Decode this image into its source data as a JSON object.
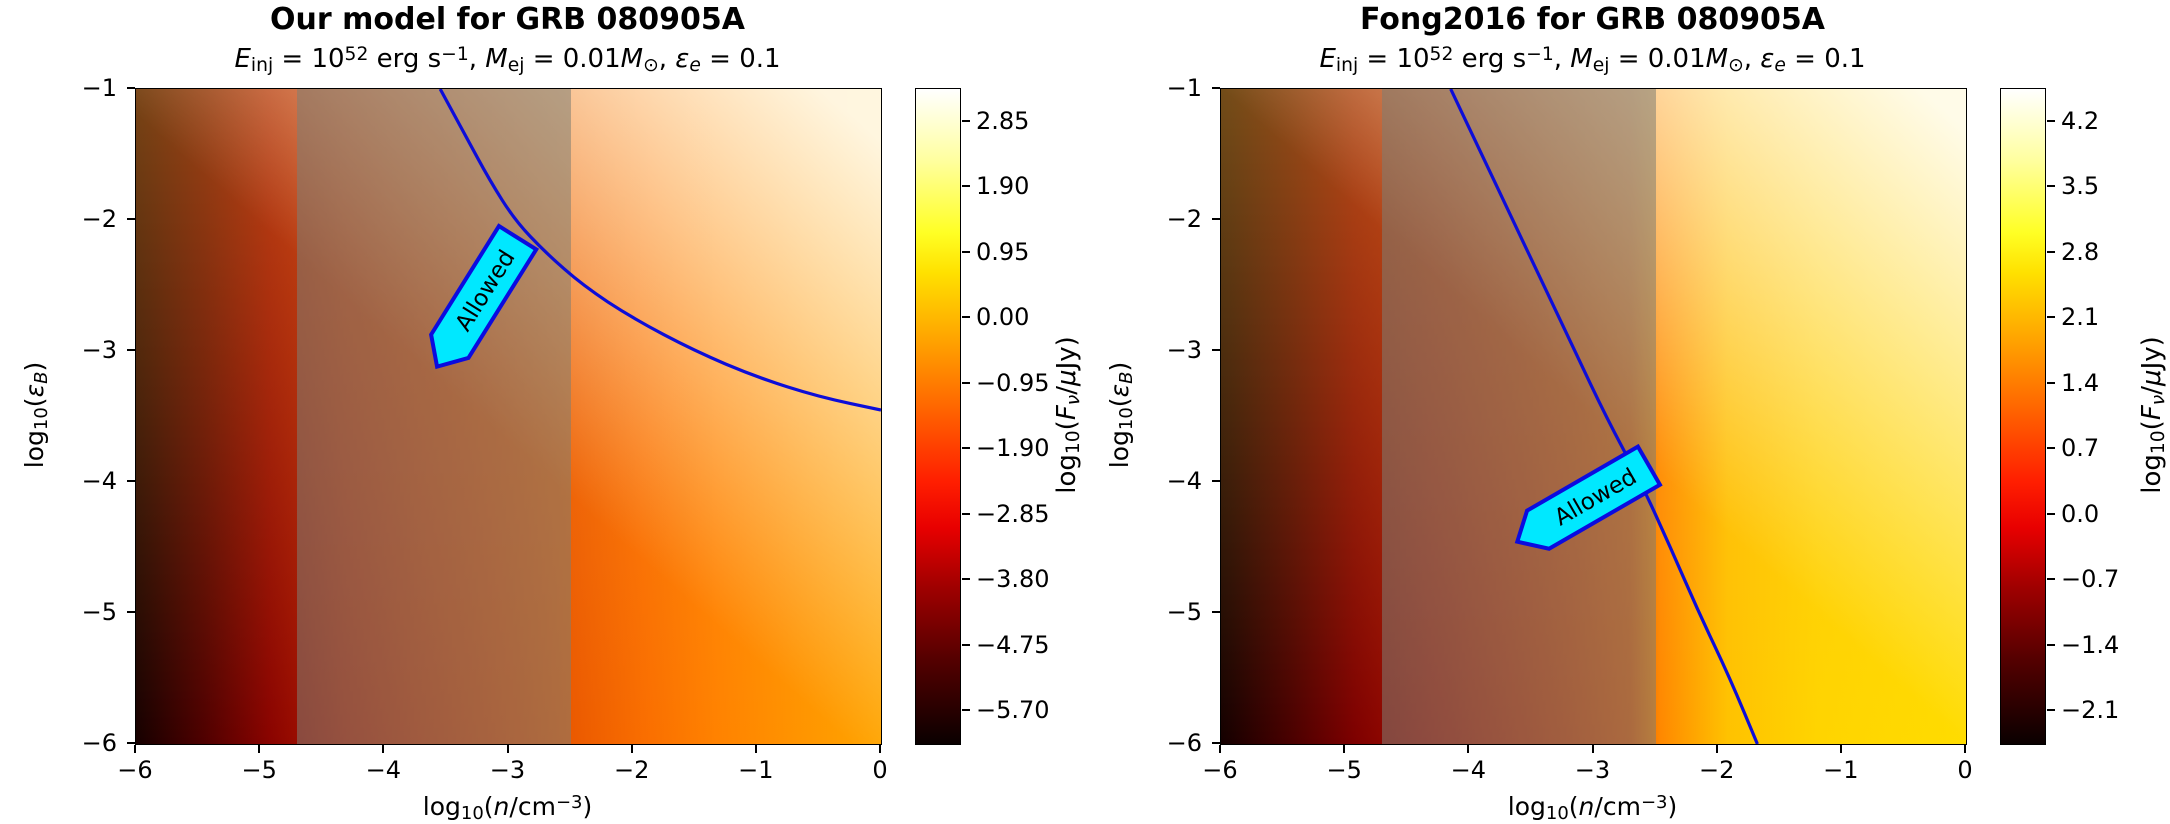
{
  "style_colors": {
    "curve": "#0d0dd8",
    "region_fill": "#00e8ff",
    "region_stroke": "#0b0bdf",
    "band": "rgba(125,125,115,0.55)",
    "axis": "#000000",
    "background": "#ffffff"
  },
  "chart_data": [
    {
      "type": "heatmap",
      "title": "Our model for GRB 080905A",
      "subtitle_parts": [
        {
          "t": "E",
          "c": "it"
        },
        {
          "t": "inj",
          "c": "sb"
        },
        {
          "t": " = 10"
        },
        {
          "t": "52",
          "c": "sp"
        },
        {
          "t": " erg s"
        },
        {
          "t": "−1",
          "c": "sp"
        },
        {
          "t": ", "
        },
        {
          "t": "M",
          "c": "it"
        },
        {
          "t": "ej",
          "c": "sb"
        },
        {
          "t": " = 0.01"
        },
        {
          "t": "M",
          "c": "it"
        },
        {
          "t": "⊙",
          "c": "sb"
        },
        {
          "t": ", "
        },
        {
          "t": "ε",
          "c": "it"
        },
        {
          "t": "e",
          "c": "sb it"
        },
        {
          "t": " = 0.1"
        }
      ],
      "xlabel_parts": [
        {
          "t": "log"
        },
        {
          "t": "10",
          "c": "sb"
        },
        {
          "t": "("
        },
        {
          "t": "n",
          "c": "it"
        },
        {
          "t": "/cm"
        },
        {
          "t": "−3",
          "c": "sp"
        },
        {
          "t": ")"
        }
      ],
      "ylabel_parts": [
        {
          "t": "log"
        },
        {
          "t": "10",
          "c": "sb"
        },
        {
          "t": "("
        },
        {
          "t": "ε",
          "c": "it"
        },
        {
          "t": "B",
          "c": "sb it"
        },
        {
          "t": ")"
        }
      ],
      "xlim": [
        -6,
        0
      ],
      "ylim": [
        -6,
        -1
      ],
      "x_ticks": [
        -6,
        -5,
        -4,
        -3,
        -2,
        -1,
        0
      ],
      "x_tick_labels": [
        "−6",
        "−5",
        "−4",
        "−3",
        "−2",
        "−1",
        "0"
      ],
      "y_ticks": [
        -1,
        -2,
        -3,
        -4,
        -5,
        -6
      ],
      "y_tick_labels": [
        "−1",
        "−2",
        "−3",
        "−4",
        "−5",
        "−6"
      ],
      "colormap": "hot",
      "colorbar_label_parts": [
        {
          "t": "log"
        },
        {
          "t": "10",
          "c": "sb"
        },
        {
          "t": "("
        },
        {
          "t": "F",
          "c": "it"
        },
        {
          "t": "ν",
          "c": "sb it"
        },
        {
          "t": "/"
        },
        {
          "t": "μ",
          "c": "it"
        },
        {
          "t": "Jy)"
        }
      ],
      "colorbar_tick_values": [
        2.85,
        1.9,
        0.95,
        0.0,
        -0.95,
        -1.9,
        -2.85,
        -3.8,
        -4.75,
        -5.7
      ],
      "colorbar_tick_labels": [
        "2.85",
        "1.90",
        "0.95",
        "0.00",
        "−0.95",
        "−1.90",
        "−2.85",
        "−3.80",
        "−4.75",
        "−5.70"
      ],
      "colorbar_range": [
        -6.175,
        3.325
      ],
      "shaded_band_x": [
        -4.7,
        -2.5
      ],
      "constraint_curve_points": [
        [
          -3.55,
          -1.0
        ],
        [
          -3.35,
          -1.35
        ],
        [
          -3.15,
          -1.7
        ],
        [
          -2.95,
          -2.0
        ],
        [
          -2.7,
          -2.25
        ],
        [
          -2.4,
          -2.5
        ],
        [
          -2.0,
          -2.75
        ],
        [
          -1.5,
          -3.0
        ],
        [
          -1.0,
          -3.2
        ],
        [
          -0.5,
          -3.35
        ],
        [
          0.0,
          -3.45
        ]
      ],
      "region_label": {
        "text": "Allowed",
        "center": [
          -3.2,
          -2.55
        ],
        "rotation_deg": -58
      }
    },
    {
      "type": "heatmap",
      "title": "Fong2016 for GRB 080905A",
      "subtitle_parts": [
        {
          "t": "E",
          "c": "it"
        },
        {
          "t": "inj",
          "c": "sb"
        },
        {
          "t": " = 10"
        },
        {
          "t": "52",
          "c": "sp"
        },
        {
          "t": " erg s"
        },
        {
          "t": "−1",
          "c": "sp"
        },
        {
          "t": ", "
        },
        {
          "t": "M",
          "c": "it"
        },
        {
          "t": "ej",
          "c": "sb"
        },
        {
          "t": " = 0.01"
        },
        {
          "t": "M",
          "c": "it"
        },
        {
          "t": "⊙",
          "c": "sb"
        },
        {
          "t": ", "
        },
        {
          "t": "ε",
          "c": "it"
        },
        {
          "t": "e",
          "c": "sb it"
        },
        {
          "t": " = 0.1"
        }
      ],
      "xlabel_parts": [
        {
          "t": "log"
        },
        {
          "t": "10",
          "c": "sb"
        },
        {
          "t": "("
        },
        {
          "t": "n",
          "c": "it"
        },
        {
          "t": "/cm"
        },
        {
          "t": "−3",
          "c": "sp"
        },
        {
          "t": ")"
        }
      ],
      "ylabel_parts": [
        {
          "t": "log"
        },
        {
          "t": "10",
          "c": "sb"
        },
        {
          "t": "("
        },
        {
          "t": "ε",
          "c": "it"
        },
        {
          "t": "B",
          "c": "sb it"
        },
        {
          "t": ")"
        }
      ],
      "xlim": [
        -6,
        0
      ],
      "ylim": [
        -6,
        -1
      ],
      "x_ticks": [
        -6,
        -5,
        -4,
        -3,
        -2,
        -1,
        0
      ],
      "x_tick_labels": [
        "−6",
        "−5",
        "−4",
        "−3",
        "−2",
        "−1",
        "0"
      ],
      "y_ticks": [
        -1,
        -2,
        -3,
        -4,
        -5,
        -6
      ],
      "y_tick_labels": [
        "−1",
        "−2",
        "−3",
        "−4",
        "−5",
        "−6"
      ],
      "colormap": "hot",
      "colorbar_label_parts": [
        {
          "t": "log"
        },
        {
          "t": "10",
          "c": "sb"
        },
        {
          "t": "("
        },
        {
          "t": "F",
          "c": "it"
        },
        {
          "t": "ν",
          "c": "sb it"
        },
        {
          "t": "/"
        },
        {
          "t": "μ",
          "c": "it"
        },
        {
          "t": "Jy)"
        }
      ],
      "colorbar_tick_values": [
        4.2,
        3.5,
        2.8,
        2.1,
        1.4,
        0.7,
        0.0,
        -0.7,
        -1.4,
        -2.1
      ],
      "colorbar_tick_labels": [
        "4.2",
        "3.5",
        "2.8",
        "2.1",
        "1.4",
        "0.7",
        "0.0",
        "−0.7",
        "−1.4",
        "−2.1"
      ],
      "colorbar_range": [
        -2.45,
        4.55
      ],
      "shaded_band_x": [
        -4.7,
        -2.5
      ],
      "constraint_curve_points": [
        [
          -4.15,
          -1.0
        ],
        [
          -3.9,
          -1.5
        ],
        [
          -3.65,
          -2.0
        ],
        [
          -3.4,
          -2.5
        ],
        [
          -3.15,
          -3.0
        ],
        [
          -2.9,
          -3.5
        ],
        [
          -2.62,
          -4.0
        ],
        [
          -2.38,
          -4.5
        ],
        [
          -2.15,
          -5.0
        ],
        [
          -1.9,
          -5.5
        ],
        [
          -1.68,
          -6.0
        ]
      ],
      "region_label": {
        "text": "Allowed",
        "center": [
          -3.0,
          -4.12
        ],
        "rotation_deg": -30
      }
    }
  ]
}
